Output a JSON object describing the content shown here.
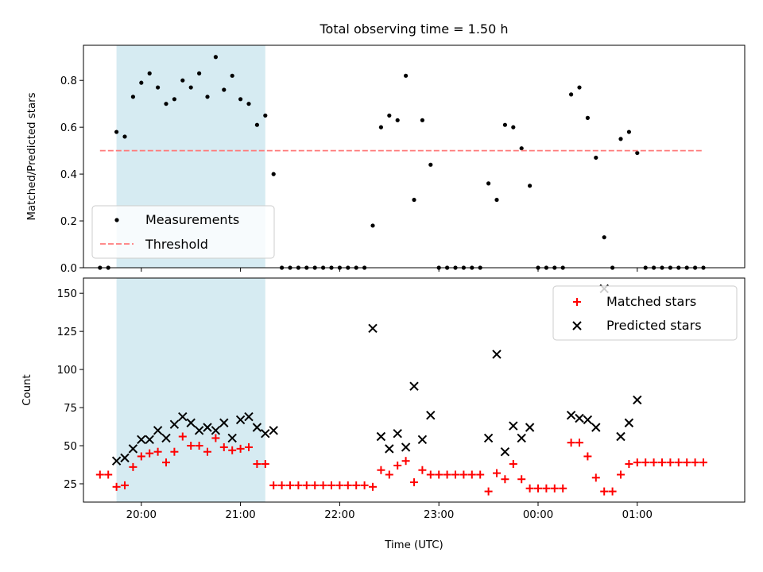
{
  "chart_data": [
    {
      "type": "scatter",
      "title": "Total observing time = 1.50 h",
      "xlabel": "",
      "ylabel": "Matched/Predicted stars",
      "xlim": [
        "19:25",
        "02:05"
      ],
      "ylim": [
        0,
        0.95
      ],
      "yticks": [
        0.0,
        0.2,
        0.4,
        0.6,
        0.8
      ],
      "ytick_labels": [
        "0.0",
        "0.2",
        "0.4",
        "0.6",
        "0.8"
      ],
      "xticks": [
        "20:00",
        "21:00",
        "22:00",
        "23:00",
        "00:00",
        "01:00"
      ],
      "shaded_interval": [
        "19:45",
        "21:15"
      ],
      "legend_position": "lower left",
      "series": [
        {
          "name": "Measurements",
          "marker": "dot",
          "color": "#000000",
          "points": [
            [
              "19:35",
              0.0
            ],
            [
              "19:40",
              0.0
            ],
            [
              "19:45",
              0.58
            ],
            [
              "19:50",
              0.56
            ],
            [
              "19:55",
              0.73
            ],
            [
              "20:00",
              0.79
            ],
            [
              "20:05",
              0.83
            ],
            [
              "20:10",
              0.77
            ],
            [
              "20:15",
              0.7
            ],
            [
              "20:20",
              0.72
            ],
            [
              "20:25",
              0.8
            ],
            [
              "20:30",
              0.77
            ],
            [
              "20:35",
              0.83
            ],
            [
              "20:40",
              0.73
            ],
            [
              "20:45",
              0.9
            ],
            [
              "20:50",
              0.76
            ],
            [
              "20:55",
              0.82
            ],
            [
              "21:00",
              0.72
            ],
            [
              "21:05",
              0.7
            ],
            [
              "21:10",
              0.61
            ],
            [
              "21:15",
              0.65
            ],
            [
              "21:20",
              0.4
            ],
            [
              "21:25",
              0.0
            ],
            [
              "21:30",
              0.0
            ],
            [
              "21:35",
              0.0
            ],
            [
              "21:40",
              0.0
            ],
            [
              "21:45",
              0.0
            ],
            [
              "21:50",
              0.0
            ],
            [
              "21:55",
              0.0
            ],
            [
              "22:00",
              0.0
            ],
            [
              "22:05",
              0.0
            ],
            [
              "22:10",
              0.0
            ],
            [
              "22:15",
              0.0
            ],
            [
              "22:20",
              0.18
            ],
            [
              "22:25",
              0.6
            ],
            [
              "22:30",
              0.65
            ],
            [
              "22:35",
              0.63
            ],
            [
              "22:40",
              0.82
            ],
            [
              "22:45",
              0.29
            ],
            [
              "22:50",
              0.63
            ],
            [
              "22:55",
              0.44
            ],
            [
              "23:00",
              0.0
            ],
            [
              "23:05",
              0.0
            ],
            [
              "23:10",
              0.0
            ],
            [
              "23:15",
              0.0
            ],
            [
              "23:20",
              0.0
            ],
            [
              "23:25",
              0.0
            ],
            [
              "23:30",
              0.36
            ],
            [
              "23:35",
              0.29
            ],
            [
              "23:40",
              0.61
            ],
            [
              "23:45",
              0.6
            ],
            [
              "23:50",
              0.51
            ],
            [
              "23:55",
              0.35
            ],
            [
              "00:00",
              0.0
            ],
            [
              "00:05",
              0.0
            ],
            [
              "00:10",
              0.0
            ],
            [
              "00:15",
              0.0
            ],
            [
              "00:20",
              0.74
            ],
            [
              "00:25",
              0.77
            ],
            [
              "00:30",
              0.64
            ],
            [
              "00:35",
              0.47
            ],
            [
              "00:40",
              0.13
            ],
            [
              "00:45",
              0.0
            ],
            [
              "00:50",
              0.55
            ],
            [
              "00:55",
              0.58
            ],
            [
              "01:00",
              0.49
            ],
            [
              "01:05",
              0.0
            ],
            [
              "01:10",
              0.0
            ],
            [
              "01:15",
              0.0
            ],
            [
              "01:20",
              0.0
            ],
            [
              "01:25",
              0.0
            ],
            [
              "01:30",
              0.0
            ],
            [
              "01:35",
              0.0
            ],
            [
              "01:40",
              0.0
            ]
          ]
        },
        {
          "name": "Threshold",
          "type": "line",
          "style": "dashed",
          "color": "#ff7b7b",
          "points": [
            [
              "19:35",
              0.5
            ],
            [
              "01:40",
              0.5
            ]
          ]
        }
      ]
    },
    {
      "type": "scatter",
      "title": "",
      "xlabel": "Time (UTC)",
      "ylabel": "Count",
      "xlim": [
        "19:25",
        "02:05"
      ],
      "ylim": [
        13,
        160
      ],
      "yticks": [
        25,
        50,
        75,
        100,
        125,
        150
      ],
      "ytick_labels": [
        "25",
        "50",
        "75",
        "100",
        "125",
        "150"
      ],
      "xticks": [
        "20:00",
        "21:00",
        "22:00",
        "23:00",
        "00:00",
        "01:00"
      ],
      "xtick_labels": [
        "20:00",
        "21:00",
        "22:00",
        "23:00",
        "00:00",
        "01:00"
      ],
      "shaded_interval": [
        "19:45",
        "21:15"
      ],
      "legend_position": "upper right",
      "series": [
        {
          "name": "Matched stars",
          "marker": "plus",
          "color": "#ff0000",
          "points": [
            [
              "19:35",
              31
            ],
            [
              "19:40",
              31
            ],
            [
              "19:45",
              23
            ],
            [
              "19:50",
              24
            ],
            [
              "19:55",
              36
            ],
            [
              "20:00",
              43
            ],
            [
              "20:05",
              45
            ],
            [
              "20:10",
              46
            ],
            [
              "20:15",
              39
            ],
            [
              "20:20",
              46
            ],
            [
              "20:25",
              56
            ],
            [
              "20:30",
              50
            ],
            [
              "20:35",
              50
            ],
            [
              "20:40",
              46
            ],
            [
              "20:45",
              55
            ],
            [
              "20:50",
              49
            ],
            [
              "20:55",
              47
            ],
            [
              "21:00",
              48
            ],
            [
              "21:05",
              49
            ],
            [
              "21:10",
              38
            ],
            [
              "21:15",
              38
            ],
            [
              "21:20",
              24
            ],
            [
              "21:25",
              24
            ],
            [
              "21:30",
              24
            ],
            [
              "21:35",
              24
            ],
            [
              "21:40",
              24
            ],
            [
              "21:45",
              24
            ],
            [
              "21:50",
              24
            ],
            [
              "21:55",
              24
            ],
            [
              "22:00",
              24
            ],
            [
              "22:05",
              24
            ],
            [
              "22:10",
              24
            ],
            [
              "22:15",
              24
            ],
            [
              "22:20",
              23
            ],
            [
              "22:25",
              34
            ],
            [
              "22:30",
              31
            ],
            [
              "22:35",
              37
            ],
            [
              "22:40",
              40
            ],
            [
              "22:45",
              26
            ],
            [
              "22:50",
              34
            ],
            [
              "22:55",
              31
            ],
            [
              "23:00",
              31
            ],
            [
              "23:05",
              31
            ],
            [
              "23:10",
              31
            ],
            [
              "23:15",
              31
            ],
            [
              "23:20",
              31
            ],
            [
              "23:25",
              31
            ],
            [
              "23:30",
              20
            ],
            [
              "23:35",
              32
            ],
            [
              "23:40",
              28
            ],
            [
              "23:45",
              38
            ],
            [
              "23:50",
              28
            ],
            [
              "23:55",
              22
            ],
            [
              "00:00",
              22
            ],
            [
              "00:05",
              22
            ],
            [
              "00:10",
              22
            ],
            [
              "00:15",
              22
            ],
            [
              "00:20",
              52
            ],
            [
              "00:25",
              52
            ],
            [
              "00:30",
              43
            ],
            [
              "00:35",
              29
            ],
            [
              "00:40",
              20
            ],
            [
              "00:45",
              20
            ],
            [
              "00:50",
              31
            ],
            [
              "00:55",
              38
            ],
            [
              "01:00",
              39
            ],
            [
              "01:05",
              39
            ],
            [
              "01:10",
              39
            ],
            [
              "01:15",
              39
            ],
            [
              "01:20",
              39
            ],
            [
              "01:25",
              39
            ],
            [
              "01:30",
              39
            ],
            [
              "01:35",
              39
            ],
            [
              "01:40",
              39
            ]
          ]
        },
        {
          "name": "Predicted stars",
          "marker": "x",
          "color": "#000000",
          "points": [
            [
              "19:45",
              40
            ],
            [
              "19:50",
              42
            ],
            [
              "19:55",
              48
            ],
            [
              "20:00",
              54
            ],
            [
              "20:05",
              54
            ],
            [
              "20:10",
              60
            ],
            [
              "20:15",
              55
            ],
            [
              "20:20",
              64
            ],
            [
              "20:25",
              69
            ],
            [
              "20:30",
              65
            ],
            [
              "20:35",
              60
            ],
            [
              "20:40",
              62
            ],
            [
              "20:45",
              60
            ],
            [
              "20:50",
              65
            ],
            [
              "20:55",
              55
            ],
            [
              "21:00",
              67
            ],
            [
              "21:05",
              69
            ],
            [
              "21:10",
              62
            ],
            [
              "21:15",
              58
            ],
            [
              "21:20",
              60
            ],
            [
              "22:20",
              127
            ],
            [
              "22:25",
              56
            ],
            [
              "22:30",
              48
            ],
            [
              "22:35",
              58
            ],
            [
              "22:40",
              49
            ],
            [
              "22:45",
              89
            ],
            [
              "22:50",
              54
            ],
            [
              "22:55",
              70
            ],
            [
              "23:30",
              55
            ],
            [
              "23:35",
              110
            ],
            [
              "23:40",
              46
            ],
            [
              "23:45",
              63
            ],
            [
              "23:50",
              55
            ],
            [
              "23:55",
              62
            ],
            [
              "00:20",
              70
            ],
            [
              "00:25",
              68
            ],
            [
              "00:30",
              67
            ],
            [
              "00:35",
              62
            ],
            [
              "00:40",
              153
            ],
            [
              "00:50",
              56
            ],
            [
              "00:55",
              65
            ],
            [
              "01:00",
              80
            ]
          ]
        }
      ]
    }
  ]
}
